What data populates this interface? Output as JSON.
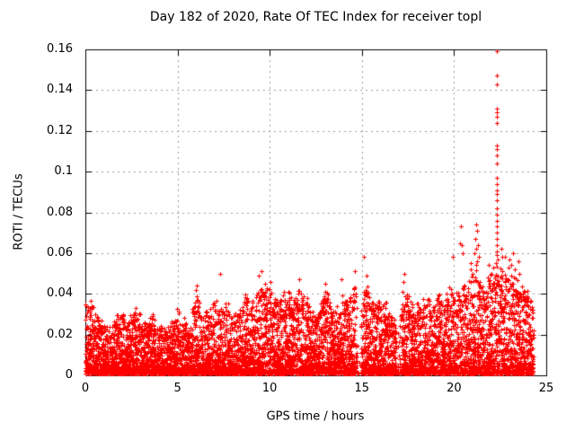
{
  "chart_data": {
    "type": "scatter",
    "title": "Day 182 of 2020, Rate Of TEC Index for receiver topl",
    "xlabel": "GPS time / hours",
    "ylabel": "ROTI / TECUs",
    "xlim": [
      0,
      25
    ],
    "ylim": [
      0,
      0.16
    ],
    "xtick_values": [
      0,
      5,
      10,
      15,
      20,
      25
    ],
    "xtick_labels": [
      "0",
      "5",
      "10",
      "15",
      "20",
      "25"
    ],
    "ytick_values": [
      0,
      0.02,
      0.04,
      0.06,
      0.08,
      0.1,
      0.12,
      0.14,
      0.16
    ],
    "ytick_labels": [
      "0",
      "0.02",
      "0.04",
      "0.06",
      "0.08",
      "0.1",
      "0.12",
      "0.14",
      "0.16"
    ],
    "grid": {
      "show": true,
      "color": "#9c9c9c",
      "dash": [
        2,
        4
      ]
    },
    "axis_color": "#000000",
    "background": "#ffffff",
    "legend": null,
    "marker": {
      "shape": "plus",
      "color": "#ff0000",
      "size": 5
    },
    "data_model": {
      "description": "Dense ROTI scatter 0-24.3h; bulk band 0.001-0.03 TECU with triangular peaks; envelope = piecewise-linear upper bound of dense mass; outliers = individually visible detached points incl. large spike at 22.3h up to 0.159",
      "t_start": 0,
      "t_end": 24.3,
      "samples_per_hour": 120,
      "points_per_sample": 3,
      "y_floor": 0.001,
      "power": 2.2,
      "top_point_prob": 0.12,
      "seed": 18220,
      "envelope": [
        [
          0,
          0.036
        ],
        [
          0.3,
          0.037
        ],
        [
          0.6,
          0.03
        ],
        [
          1.0,
          0.026
        ],
        [
          1.3,
          0.024
        ],
        [
          1.7,
          0.03
        ],
        [
          2.0,
          0.033
        ],
        [
          2.3,
          0.028
        ],
        [
          2.7,
          0.034
        ],
        [
          3.0,
          0.03
        ],
        [
          3.3,
          0.026
        ],
        [
          3.7,
          0.031
        ],
        [
          4.0,
          0.026
        ],
        [
          4.3,
          0.024
        ],
        [
          4.7,
          0.028
        ],
        [
          5.0,
          0.033
        ],
        [
          5.3,
          0.029
        ],
        [
          5.7,
          0.026
        ],
        [
          6.0,
          0.044
        ],
        [
          6.3,
          0.038
        ],
        [
          6.7,
          0.032
        ],
        [
          7.0,
          0.039
        ],
        [
          7.3,
          0.034
        ],
        [
          7.7,
          0.037
        ],
        [
          8.0,
          0.031
        ],
        [
          8.3,
          0.033
        ],
        [
          8.7,
          0.042
        ],
        [
          9.0,
          0.036
        ],
        [
          9.3,
          0.04
        ],
        [
          9.6,
          0.046
        ],
        [
          10.0,
          0.044
        ],
        [
          10.3,
          0.04
        ],
        [
          10.7,
          0.043
        ],
        [
          11.0,
          0.042
        ],
        [
          11.3,
          0.038
        ],
        [
          11.6,
          0.046
        ],
        [
          12.0,
          0.04
        ],
        [
          12.3,
          0.032
        ],
        [
          12.7,
          0.036
        ],
        [
          13.0,
          0.044
        ],
        [
          13.3,
          0.037
        ],
        [
          13.7,
          0.034
        ],
        [
          14.0,
          0.042
        ],
        [
          14.3,
          0.038
        ],
        [
          14.6,
          0.05
        ],
        [
          14.9,
          0.028
        ],
        [
          15.2,
          0.047
        ],
        [
          15.5,
          0.042
        ],
        [
          15.8,
          0.037
        ],
        [
          16.1,
          0.04
        ],
        [
          16.4,
          0.034
        ],
        [
          16.7,
          0.028
        ],
        [
          17.0,
          0.024
        ],
        [
          17.3,
          0.048
        ],
        [
          17.6,
          0.04
        ],
        [
          17.9,
          0.035
        ],
        [
          18.2,
          0.039
        ],
        [
          18.5,
          0.04
        ],
        [
          18.8,
          0.037
        ],
        [
          19.1,
          0.042
        ],
        [
          19.4,
          0.037
        ],
        [
          19.7,
          0.044
        ],
        [
          20.0,
          0.042
        ],
        [
          20.3,
          0.046
        ],
        [
          20.6,
          0.044
        ],
        [
          20.9,
          0.052
        ],
        [
          21.2,
          0.057
        ],
        [
          21.5,
          0.048
        ],
        [
          21.8,
          0.051
        ],
        [
          22.1,
          0.055
        ],
        [
          22.35,
          0.058
        ],
        [
          22.6,
          0.051
        ],
        [
          22.9,
          0.056
        ],
        [
          23.1,
          0.052
        ],
        [
          23.35,
          0.049
        ],
        [
          23.6,
          0.045
        ],
        [
          23.9,
          0.046
        ],
        [
          24.1,
          0.04
        ],
        [
          24.3,
          0.036
        ]
      ],
      "density_gaps": [
        [
          14.68,
          14.95,
          0.12
        ],
        [
          16.85,
          17.15,
          0.25
        ]
      ],
      "outliers": [
        [
          22.32,
          0.159
        ],
        [
          22.31,
          0.147
        ],
        [
          22.33,
          0.143
        ],
        [
          22.3,
          0.131
        ],
        [
          22.32,
          0.129
        ],
        [
          22.34,
          0.127
        ],
        [
          22.31,
          0.124
        ],
        [
          22.33,
          0.113
        ],
        [
          22.3,
          0.111
        ],
        [
          22.32,
          0.108
        ],
        [
          22.31,
          0.104
        ],
        [
          22.3,
          0.097
        ],
        [
          22.33,
          0.094
        ],
        [
          22.31,
          0.091
        ],
        [
          22.34,
          0.089
        ],
        [
          22.3,
          0.086
        ],
        [
          22.32,
          0.082
        ],
        [
          22.31,
          0.079
        ],
        [
          22.33,
          0.076
        ],
        [
          22.3,
          0.073
        ],
        [
          22.32,
          0.07
        ],
        [
          22.34,
          0.067
        ],
        [
          22.31,
          0.064
        ],
        [
          22.3,
          0.061
        ],
        [
          22.33,
          0.059
        ],
        [
          22.35,
          0.057
        ],
        [
          22.28,
          0.055
        ],
        [
          21.18,
          0.074
        ],
        [
          21.24,
          0.071
        ],
        [
          21.15,
          0.067
        ],
        [
          21.28,
          0.064
        ],
        [
          21.2,
          0.062
        ],
        [
          21.12,
          0.06
        ],
        [
          21.33,
          0.058
        ],
        [
          21.25,
          0.056
        ],
        [
          20.38,
          0.073
        ],
        [
          20.3,
          0.065
        ],
        [
          20.45,
          0.06
        ],
        [
          19.95,
          0.058
        ],
        [
          20.4,
          0.064
        ],
        [
          22.55,
          0.062
        ],
        [
          22.6,
          0.058
        ],
        [
          22.75,
          0.058
        ],
        [
          23.02,
          0.057
        ],
        [
          23.08,
          0.054
        ],
        [
          23.2,
          0.06
        ],
        [
          23.3,
          0.052
        ],
        [
          23.5,
          0.056
        ],
        [
          23.55,
          0.05
        ],
        [
          21.9,
          0.054
        ],
        [
          20.9,
          0.055
        ],
        [
          15.1,
          0.058
        ],
        [
          15.25,
          0.049
        ],
        [
          14.6,
          0.051
        ],
        [
          13.9,
          0.047
        ],
        [
          17.3,
          0.05
        ],
        [
          17.25,
          0.046
        ],
        [
          9.55,
          0.051
        ],
        [
          9.4,
          0.049
        ],
        [
          7.3,
          0.05
        ],
        [
          13.0,
          0.045
        ],
        [
          6.05,
          0.044
        ],
        [
          11.62,
          0.047
        ],
        [
          10.02,
          0.046
        ]
      ]
    }
  }
}
